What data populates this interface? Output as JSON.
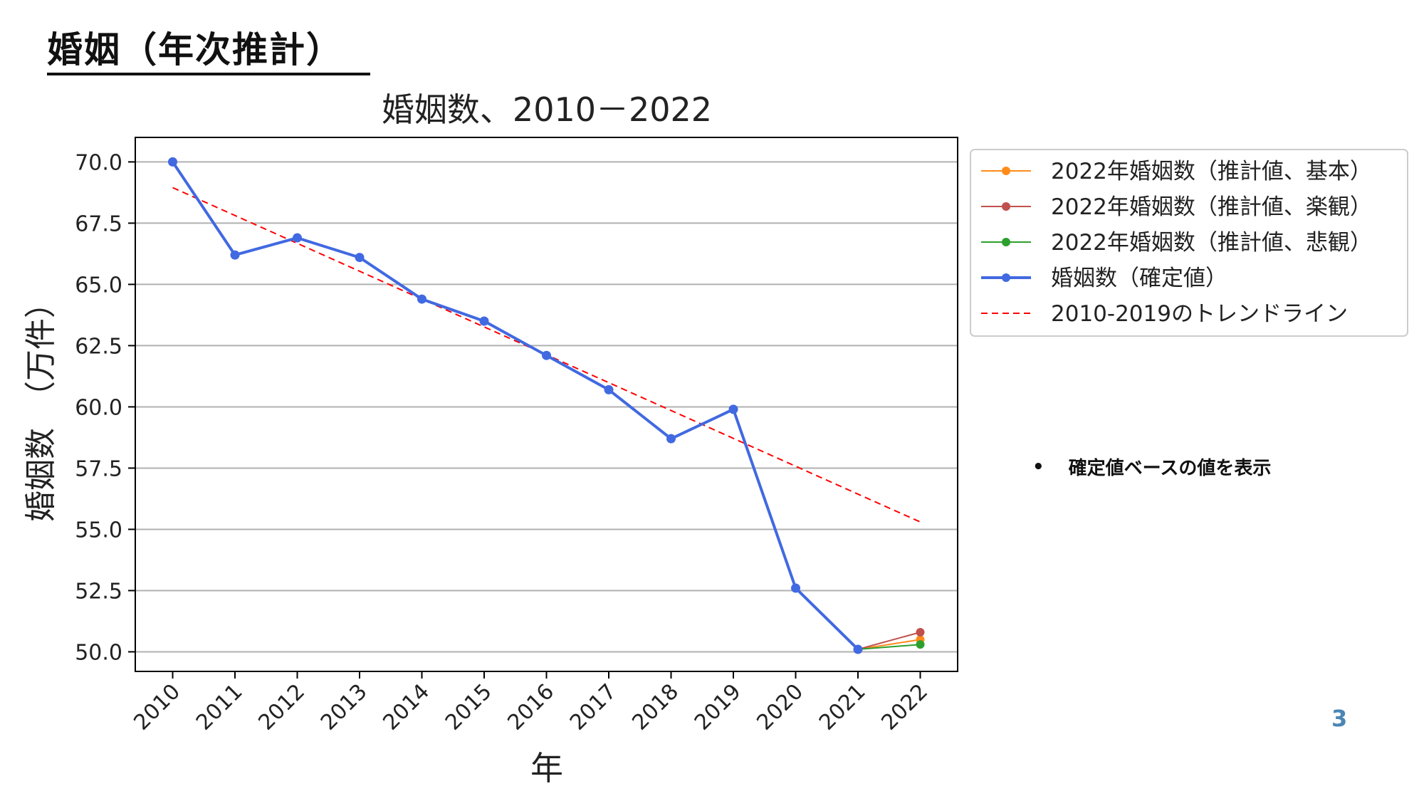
{
  "slide": {
    "title": "婚姻（年次推計）",
    "note": "確定値ベースの値を表示",
    "bullet": "•",
    "page_number": "3"
  },
  "chart_data": {
    "type": "line",
    "title": "婚姻数、2010－2022",
    "xlabel": "年",
    "ylabel": "婚姻数　（万件）",
    "x": [
      2010,
      2011,
      2012,
      2013,
      2014,
      2015,
      2016,
      2017,
      2018,
      2019,
      2020,
      2021,
      2022
    ],
    "ylim": [
      49.2,
      71.0
    ],
    "yticks": [
      50.0,
      52.5,
      55.0,
      57.5,
      60.0,
      62.5,
      65.0,
      67.5,
      70.0
    ],
    "grid": "horizontal",
    "legend_position": "upper-right-outside",
    "series": [
      {
        "name": "2022年婚姻数（推計値、基本）",
        "color": "#ff8c1a",
        "marker": "circle",
        "line_style": "solid",
        "x": [
          2021,
          2022
        ],
        "y": [
          50.1,
          50.5
        ]
      },
      {
        "name": "2022年婚姻数（推計値、楽観）",
        "color": "#c0504d",
        "marker": "circle",
        "line_style": "solid",
        "x": [
          2021,
          2022
        ],
        "y": [
          50.1,
          50.8
        ]
      },
      {
        "name": "2022年婚姻数（推計値、悲観）",
        "color": "#2ca02c",
        "marker": "circle",
        "line_style": "solid",
        "x": [
          2021,
          2022
        ],
        "y": [
          50.1,
          50.3
        ]
      },
      {
        "name": "婚姻数（確定値）",
        "color": "#4169e1",
        "marker": "circle",
        "line_style": "solid",
        "x": [
          2010,
          2011,
          2012,
          2013,
          2014,
          2015,
          2016,
          2017,
          2018,
          2019,
          2020,
          2021
        ],
        "y": [
          70.0,
          66.2,
          66.9,
          66.1,
          64.4,
          63.5,
          62.1,
          60.7,
          58.7,
          59.9,
          52.6,
          50.1
        ]
      },
      {
        "name": "2010-2019のトレンドライン",
        "color": "#ff0000",
        "marker": "none",
        "line_style": "dashed",
        "x": [
          2010,
          2022
        ],
        "y": [
          68.95,
          55.3
        ]
      }
    ]
  }
}
